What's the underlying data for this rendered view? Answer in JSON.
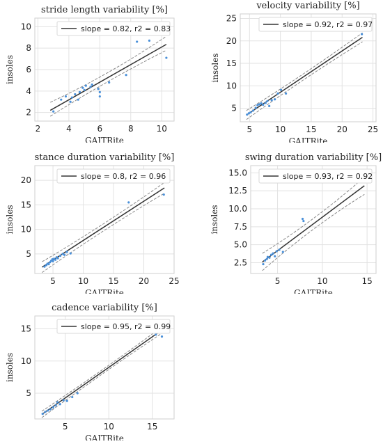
{
  "chart_data": [
    {
      "type": "scatter",
      "title": "stride length variability [%]",
      "xlabel": "GAITRite",
      "ylabel": "insoles",
      "xlim": [
        1.8,
        10.8
      ],
      "ylim": [
        1.2,
        10.8
      ],
      "xticks": [
        2,
        4,
        6,
        8,
        10
      ],
      "yticks": [
        2,
        4,
        6,
        8,
        10
      ],
      "legend": "slope = 0.82,  r2 = 0.83",
      "grid": true,
      "fit": {
        "slope": 0.82,
        "x_range": [
          2.8,
          10.3
        ],
        "y_start": 2.2
      },
      "ci": {
        "lower_end_offset": 0.55,
        "upper_end_offset": 0.75,
        "center_gap": 0.2
      },
      "points": [
        [
          3.0,
          2.1
        ],
        [
          3.5,
          3.2
        ],
        [
          3.8,
          3.5
        ],
        [
          4.1,
          3.0
        ],
        [
          4.2,
          3.4
        ],
        [
          4.4,
          3.7
        ],
        [
          4.6,
          3.2
        ],
        [
          4.7,
          3.9
        ],
        [
          4.9,
          4.3
        ],
        [
          5.0,
          4.1
        ],
        [
          5.1,
          4.5
        ],
        [
          5.4,
          4.4
        ],
        [
          5.5,
          4.6
        ],
        [
          5.9,
          4.2
        ],
        [
          6.0,
          3.5
        ],
        [
          6.0,
          3.9
        ],
        [
          6.6,
          4.8
        ],
        [
          7.7,
          5.5
        ],
        [
          8.4,
          8.6
        ],
        [
          9.2,
          8.7
        ],
        [
          10.3,
          7.1
        ]
      ]
    },
    {
      "type": "scatter",
      "title": "velocity variability [%]",
      "xlabel": "GAITRite",
      "ylabel": "insoles",
      "xlim": [
        3.5,
        25.5
      ],
      "ylim": [
        2.0,
        26.0
      ],
      "xticks": [
        5,
        10,
        15,
        20,
        25
      ],
      "yticks": [
        5,
        10,
        15,
        20,
        25
      ],
      "legend": "slope = 0.92,  r2 = 0.97",
      "grid": true,
      "fit": {
        "slope": 0.92,
        "x_range": [
          4.5,
          23.3
        ],
        "y_start": 3.5
      },
      "ci": {
        "lower_end_offset": 1.0,
        "upper_end_offset": 1.0,
        "center_gap": 0.35
      },
      "points": [
        [
          4.6,
          3.6
        ],
        [
          4.9,
          3.9
        ],
        [
          5.2,
          4.1
        ],
        [
          5.6,
          4.5
        ],
        [
          6.0,
          5.1
        ],
        [
          6.3,
          5.7
        ],
        [
          6.6,
          5.9
        ],
        [
          6.9,
          6.1
        ],
        [
          7.2,
          5.8
        ],
        [
          7.6,
          6.2
        ],
        [
          7.9,
          6.6
        ],
        [
          8.2,
          5.5
        ],
        [
          8.6,
          6.8
        ],
        [
          9.1,
          7.0
        ],
        [
          9.6,
          8.3
        ],
        [
          10.1,
          9.1
        ],
        [
          10.9,
          8.3
        ],
        [
          23.2,
          21.5
        ]
      ]
    },
    {
      "type": "scatter",
      "title": "stance duration variability [%]",
      "xlabel": "GAITRite",
      "ylabel": "insoles",
      "xlim": [
        2.0,
        25.0
      ],
      "ylim": [
        1.0,
        23.0
      ],
      "xticks": [
        5,
        10,
        15,
        20,
        25
      ],
      "yticks": [
        5,
        10,
        15,
        20
      ],
      "legend": "slope = 0.8,  r2 = 0.96",
      "grid": true,
      "fit": {
        "slope": 0.8,
        "x_range": [
          3.2,
          23.4
        ],
        "y_start": 2.3
      },
      "ci": {
        "lower_end_offset": 1.1,
        "upper_end_offset": 1.1,
        "center_gap": 0.35
      },
      "points": [
        [
          3.6,
          2.4
        ],
        [
          3.9,
          2.7
        ],
        [
          4.1,
          3.0
        ],
        [
          4.3,
          2.9
        ],
        [
          4.5,
          3.3
        ],
        [
          4.7,
          3.6
        ],
        [
          4.9,
          3.9
        ],
        [
          5.0,
          3.5
        ],
        [
          5.2,
          4.0
        ],
        [
          5.4,
          3.8
        ],
        [
          5.6,
          4.3
        ],
        [
          5.8,
          4.1
        ],
        [
          6.2,
          4.6
        ],
        [
          6.6,
          5.0
        ],
        [
          6.9,
          4.8
        ],
        [
          7.3,
          5.4
        ],
        [
          7.9,
          5.1
        ],
        [
          17.5,
          15.5
        ],
        [
          23.3,
          17.1
        ]
      ]
    },
    {
      "type": "scatter",
      "title": "swing duration variability [%]",
      "xlabel": "GAITRite",
      "ylabel": "insoles",
      "xlim": [
        2.0,
        16.0
      ],
      "ylim": [
        1.0,
        16.0
      ],
      "xticks": [
        5,
        10,
        15
      ],
      "yticks": [
        2.5,
        5.0,
        7.5,
        10.0,
        12.5,
        15.0
      ],
      "legend": "slope = 0.93,  r2 = 0.92",
      "grid": true,
      "fit": {
        "slope": 0.93,
        "x_range": [
          3.3,
          14.7
        ],
        "y_start": 2.6
      },
      "ci": {
        "lower_end_offset": 1.2,
        "upper_end_offset": 1.2,
        "center_gap": 0.3
      },
      "points": [
        [
          3.4,
          2.3
        ],
        [
          3.6,
          2.8
        ],
        [
          3.8,
          3.0
        ],
        [
          3.9,
          3.3
        ],
        [
          4.1,
          3.2
        ],
        [
          4.3,
          3.6
        ],
        [
          4.5,
          3.8
        ],
        [
          4.7,
          3.4
        ],
        [
          4.9,
          4.1
        ],
        [
          5.2,
          4.3
        ],
        [
          5.6,
          4.0
        ],
        [
          7.8,
          8.6
        ],
        [
          7.9,
          8.3
        ]
      ]
    },
    {
      "type": "scatter",
      "title": "cadence variability [%]",
      "xlabel": "GAITRite",
      "ylabel": "insoles",
      "xlim": [
        1.5,
        17.5
      ],
      "ylim": [
        1.0,
        17.0
      ],
      "xticks": [
        5,
        10,
        15
      ],
      "yticks": [
        5,
        10,
        15
      ],
      "legend": "slope = 0.95,  r2 = 0.99",
      "grid": true,
      "fit": {
        "slope": 0.95,
        "x_range": [
          2.3,
          16.2
        ],
        "y_start": 1.7
      },
      "ci": {
        "lower_end_offset": 0.5,
        "upper_end_offset": 0.5,
        "center_gap": 0.15
      },
      "points": [
        [
          2.4,
          1.8
        ],
        [
          2.7,
          2.1
        ],
        [
          3.0,
          2.3
        ],
        [
          3.3,
          2.5
        ],
        [
          3.6,
          2.8
        ],
        [
          3.9,
          3.1
        ],
        [
          4.1,
          3.6
        ],
        [
          4.4,
          3.3
        ],
        [
          4.8,
          3.9
        ],
        [
          5.2,
          3.8
        ],
        [
          5.8,
          4.4
        ],
        [
          6.4,
          5.0
        ],
        [
          15.4,
          14.1
        ],
        [
          16.1,
          13.8
        ]
      ]
    }
  ]
}
